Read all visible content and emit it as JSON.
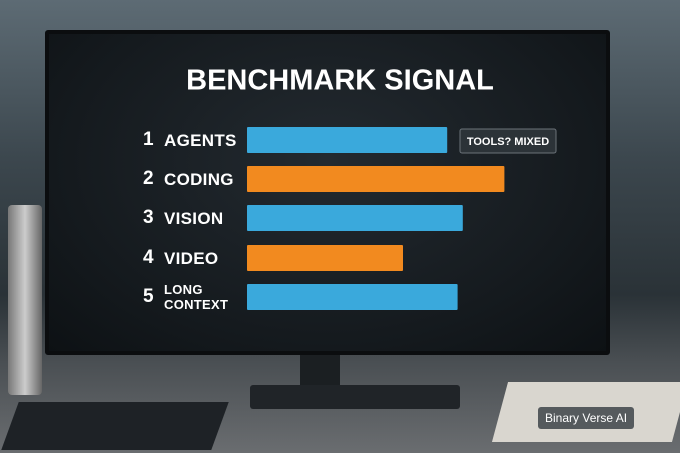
{
  "chart_data": {
    "type": "bar",
    "orientation": "horizontal",
    "title": "BENCHMARK SIGNAL",
    "ranks": [
      "1",
      "2",
      "3",
      "4",
      "5"
    ],
    "categories": [
      "AGENTS",
      "CODING",
      "VISION",
      "VIDEO",
      "LONG CONTEXT"
    ],
    "values": [
      77,
      99,
      83,
      60,
      81
    ],
    "colors": [
      "#3aa9dc",
      "#f28a1f",
      "#3aa9dc",
      "#f28a1f",
      "#3aa9dc"
    ],
    "xlim": [
      0,
      100
    ],
    "annotation": "TOOLS? MIXED",
    "watermark": "Binary Verse AI"
  }
}
